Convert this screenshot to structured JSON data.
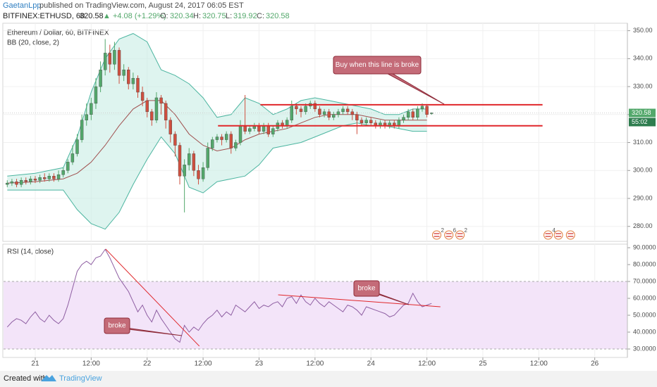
{
  "header": {
    "author": "GaetanLpp",
    "published": "published on TradingView.com, August 24, 2017 06:05 EST",
    "symbol": "BITFINEX:ETHUSD, 60",
    "change": "▲ +4.08 (+1.29%)",
    "ohlc_labels": [
      "O:",
      "H:",
      "L:",
      "C:"
    ]
  },
  "footer": {
    "created": "Created with",
    "brand": "TradingView"
  },
  "chart_data": [
    {
      "type": "candlestick",
      "title": "Ethereum / Dollar, 60, BITFINEX",
      "x": [
        -6,
        -5,
        -4,
        -3,
        -2,
        -1,
        0,
        1,
        2,
        3,
        4,
        5,
        6,
        7,
        8,
        9,
        10,
        11,
        12,
        13,
        14,
        15,
        16,
        17,
        18,
        19,
        20,
        21,
        22,
        23,
        24,
        25,
        26,
        27,
        28,
        29,
        30,
        31,
        32,
        33,
        34,
        35,
        36,
        37,
        38,
        39,
        40,
        41,
        42,
        43,
        44,
        45,
        46,
        47,
        48,
        49,
        50,
        51,
        52,
        53,
        54,
        55,
        56,
        57,
        58,
        59,
        60,
        61,
        62,
        63,
        64,
        65,
        66,
        67,
        68,
        69,
        70,
        71,
        72,
        73,
        74,
        75,
        76,
        77,
        78,
        79,
        80,
        81,
        82,
        83,
        84,
        85
      ],
      "candles": {
        "open": [
          295,
          295.5,
          296,
          295,
          296.5,
          296,
          297,
          296.5,
          297.5,
          297,
          298,
          297,
          298.5,
          300,
          303,
          306,
          311,
          318,
          320,
          324,
          330,
          336,
          342,
          338,
          343,
          334,
          336,
          331,
          333,
          328,
          325,
          321,
          318,
          326,
          324,
          318,
          313,
          309,
          298,
          302,
          306,
          300,
          297,
          301,
          308,
          311,
          312,
          311,
          313,
          308,
          310,
          316,
          314,
          315,
          316,
          314,
          316,
          313,
          315,
          317,
          316,
          318,
          323,
          322,
          321,
          323,
          324,
          322,
          320,
          321,
          319,
          320,
          321,
          322,
          321,
          320,
          318,
          317,
          318,
          317,
          316,
          317,
          316,
          317,
          316,
          318,
          319,
          321,
          319,
          322,
          323,
          320.34
        ],
        "high": [
          296.5,
          297,
          297,
          297.5,
          297.5,
          298,
          298,
          298.5,
          299,
          299,
          299,
          300,
          301,
          304,
          309,
          313,
          320,
          324,
          326,
          333,
          339,
          347,
          345,
          346,
          344,
          338,
          337,
          335,
          334,
          330,
          326,
          322,
          328,
          327,
          325,
          319,
          314,
          310,
          304,
          308,
          307,
          302,
          303,
          310,
          312,
          313,
          313,
          314,
          314,
          311,
          318,
          327,
          316,
          317,
          317,
          317,
          317,
          316,
          318,
          318,
          319,
          325,
          324,
          323,
          324,
          325,
          325,
          323,
          322,
          322,
          321,
          322,
          323,
          323,
          322,
          321,
          319,
          319,
          319,
          318,
          318,
          318,
          318,
          318,
          319,
          320,
          322,
          322,
          323,
          324,
          323.5,
          320.75
        ],
        "low": [
          294,
          294.5,
          294,
          294,
          295,
          295,
          295.5,
          295.5,
          296,
          296,
          296,
          296,
          297.5,
          299,
          302,
          305,
          310,
          316,
          318,
          322,
          328,
          334,
          335,
          336,
          331,
          332,
          329,
          329,
          326,
          323,
          319,
          316,
          317,
          320,
          315,
          310,
          305,
          295,
          285,
          300,
          298,
          295,
          296,
          300,
          307,
          310,
          309,
          310,
          306,
          307,
          309,
          313,
          313,
          314,
          313,
          313,
          312,
          312,
          314,
          315,
          315,
          317,
          320,
          319,
          320,
          322,
          321,
          319,
          319,
          318,
          318,
          319,
          320,
          320,
          318,
          313,
          316,
          316,
          316,
          315,
          315,
          315,
          315,
          315,
          315,
          317,
          318,
          318,
          318,
          321,
          319,
          319.92
        ],
        "close": [
          295.5,
          296,
          295,
          296.5,
          296,
          297,
          296.5,
          297.5,
          297,
          298,
          297,
          298.5,
          300,
          303,
          306,
          311,
          318,
          320,
          324,
          330,
          336,
          342,
          338,
          343,
          334,
          336,
          331,
          333,
          328,
          325,
          321,
          318,
          326,
          324,
          318,
          313,
          309,
          298,
          302,
          306,
          300,
          297,
          301,
          308,
          311,
          312,
          311,
          313,
          308,
          310,
          316,
          314,
          315,
          316,
          314,
          316,
          313,
          315,
          317,
          316,
          318,
          323,
          322,
          321,
          323,
          324,
          322,
          320,
          321,
          319,
          320,
          321,
          322,
          321,
          320,
          318,
          317,
          318,
          317,
          316,
          317,
          316,
          317,
          316,
          318,
          319,
          321,
          319,
          322,
          323,
          320,
          320.58
        ]
      },
      "up_color": "#53a86b",
      "down_color": "#cf4f3f",
      "bb": {
        "name": "BB (20, close, 2)",
        "x": [
          -6,
          -3,
          0,
          3,
          6,
          9,
          12,
          15,
          18,
          21,
          24,
          27,
          30,
          33,
          36,
          39,
          42,
          45,
          48,
          51,
          54,
          57,
          60,
          63,
          66,
          69,
          72,
          75,
          78,
          81,
          84
        ],
        "upper": [
          298,
          298.5,
          299,
          300,
          301,
          312,
          328,
          340,
          347,
          349,
          346,
          336,
          334,
          331,
          326,
          319,
          320,
          326,
          324,
          320,
          322,
          325,
          326,
          325,
          324,
          323,
          322,
          320,
          320,
          322,
          322
        ],
        "middle": [
          295.5,
          295.7,
          296,
          296.5,
          297,
          299,
          303,
          309,
          316,
          322,
          325,
          325,
          320,
          313,
          309,
          307,
          308,
          311,
          313,
          314,
          315,
          317,
          319,
          320,
          320,
          320,
          319,
          318,
          318,
          318,
          318
        ],
        "lower": [
          293,
          293,
          293,
          293,
          293,
          286,
          281,
          279,
          285,
          295,
          304,
          312,
          306,
          294,
          292,
          296,
          297,
          298,
          302,
          308,
          309,
          310,
          312,
          314,
          316,
          317,
          316,
          316,
          315,
          314,
          314
        ],
        "band_color": "#4cb5a0",
        "middle_color": "#a0504f",
        "fill": "#c8ece4"
      },
      "xlim": [
        -6.8,
        127
      ],
      "ylim": [
        274.65,
        352.67
      ],
      "yticks": [
        {
          "value": 280,
          "label": "280.00"
        },
        {
          "value": 290,
          "label": "290.00"
        },
        {
          "value": 300,
          "label": "300.00"
        },
        {
          "value": 310,
          "label": "310.00"
        },
        {
          "value": 320,
          "label": "320.00"
        },
        {
          "value": 330,
          "label": "330.00"
        },
        {
          "value": 340,
          "label": "340.00"
        },
        {
          "value": 350,
          "label": "350.00"
        }
      ],
      "grid": true,
      "countdown": "55:02",
      "lines": [
        {
          "x": [
            48.3,
            108.8
          ],
          "y": [
            323.5,
            323.5
          ]
        },
        {
          "x": [
            39.2,
            108.8
          ],
          "y": [
            316,
            316
          ]
        }
      ],
      "line_color": "#e0262a",
      "annotations": [
        {
          "text": "Buy when this line is broke"
        }
      ],
      "events": [
        {
          "x": 86.1,
          "label": "2"
        },
        {
          "x": 88.7,
          "label": "6"
        },
        {
          "x": 91.1,
          "label": "2"
        },
        {
          "x": 110,
          "label": "4"
        },
        {
          "x": 112.2
        },
        {
          "x": 114.8
        }
      ]
    },
    {
      "type": "line",
      "title": "RSI (14, close)",
      "x": [
        -6,
        -5,
        -4,
        -3,
        -2,
        -1,
        0,
        1,
        2,
        3,
        4,
        5,
        6,
        7,
        8,
        9,
        10,
        11,
        12,
        13,
        14,
        15,
        16,
        17,
        18,
        19,
        20,
        21,
        22,
        23,
        24,
        25,
        26,
        27,
        28,
        29,
        30,
        31,
        32,
        33,
        34,
        35,
        36,
        37,
        38,
        39,
        40,
        41,
        42,
        43,
        44,
        45,
        46,
        47,
        48,
        49,
        50,
        51,
        52,
        53,
        54,
        55,
        56,
        57,
        58,
        59,
        60,
        61,
        62,
        63,
        64,
        65,
        66,
        67,
        68,
        69,
        70,
        71,
        72,
        73,
        74,
        75,
        76,
        77,
        78,
        79,
        80,
        81,
        82,
        83,
        84,
        85
      ],
      "values": [
        43,
        46,
        48,
        47,
        45,
        49,
        52,
        48,
        46,
        50,
        47,
        45,
        48,
        56,
        66,
        76,
        80,
        82,
        80,
        84,
        85,
        89,
        84,
        78,
        72,
        68,
        64,
        58,
        52,
        56,
        50,
        46,
        53,
        48,
        44,
        40,
        36,
        34,
        44,
        40,
        43,
        41,
        45,
        48,
        50,
        53,
        49,
        52,
        50,
        56,
        54,
        52,
        55,
        58,
        54,
        56,
        55,
        57,
        58,
        55,
        60,
        61,
        57,
        62,
        58,
        56,
        60,
        57,
        55,
        58,
        56,
        54,
        52,
        56,
        55,
        53,
        50,
        55,
        54,
        53,
        52,
        51,
        49,
        50,
        53,
        56,
        57,
        63,
        58,
        55,
        56,
        57
      ],
      "color": "#8e5ea2",
      "band": [
        30,
        70
      ],
      "band_color": "#f3e4f9",
      "xlim": [
        -6.8,
        127
      ],
      "ylim": [
        25,
        92.1
      ],
      "yticks": [
        {
          "value": 30,
          "label": "30.0000"
        },
        {
          "value": 40,
          "label": "40.0000"
        },
        {
          "value": 50,
          "label": "50.0000"
        },
        {
          "value": 60,
          "label": "60.0000"
        },
        {
          "value": 70,
          "label": "70.0000"
        },
        {
          "value": 80,
          "label": "80.0000"
        },
        {
          "value": 90,
          "label": "90.0000"
        }
      ],
      "xticks": [
        {
          "value": 0,
          "label": "21"
        },
        {
          "value": 12,
          "label": "12:00"
        },
        {
          "value": 24,
          "label": "22"
        },
        {
          "value": 36,
          "label": "12:00"
        },
        {
          "value": 48,
          "label": "23"
        },
        {
          "value": 60,
          "label": "12:00"
        },
        {
          "value": 72,
          "label": "24"
        },
        {
          "value": 84,
          "label": "12:00"
        },
        {
          "value": 96,
          "label": "25"
        },
        {
          "value": 108,
          "label": "12:00"
        },
        {
          "value": 120,
          "label": "26"
        }
      ],
      "lines": [
        {
          "x": [
            15.1,
            35.2
          ],
          "y": [
            89.2,
            31.7
          ]
        },
        {
          "x": [
            52.1,
            86.9
          ],
          "y": [
            62.1,
            55
          ]
        }
      ],
      "line_color": "#e0262a",
      "annotations": [
        {
          "text": "broke"
        },
        {
          "text": "broke"
        }
      ]
    }
  ]
}
